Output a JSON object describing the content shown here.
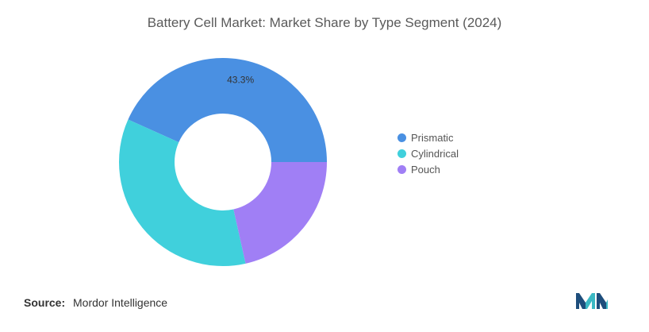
{
  "title": "Battery Cell Market: Market Share by Type Segment (2024)",
  "chart_data": {
    "type": "pie",
    "variant": "donut",
    "categories": [
      "Prismatic",
      "Cylindrical",
      "Pouch"
    ],
    "values": [
      43.3,
      35.2,
      21.5
    ],
    "colors": [
      "#4a90e2",
      "#40d0dc",
      "#a07ff5"
    ],
    "data_labels": [
      "43.3%",
      "",
      ""
    ],
    "legend_position": "right"
  },
  "legend": [
    {
      "label": "Prismatic",
      "color": "#4a90e2"
    },
    {
      "label": "Cylindrical",
      "color": "#40d0dc"
    },
    {
      "label": "Pouch",
      "color": "#a07ff5"
    }
  ],
  "source": {
    "label": "Source:",
    "text": "Mordor Intelligence"
  },
  "logo": {
    "icon": "mordor-intelligence-logo-icon",
    "colors": [
      "#1e4e7c",
      "#3bb9c4"
    ]
  }
}
